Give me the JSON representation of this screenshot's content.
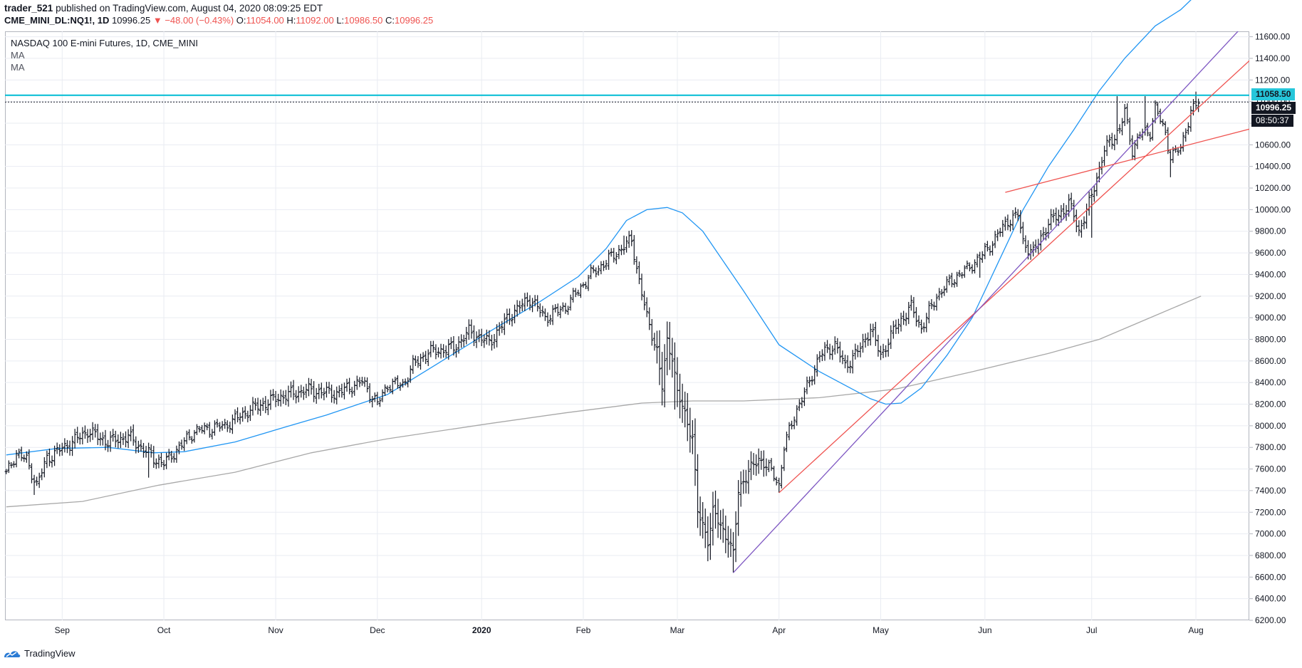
{
  "header": {
    "publisher": "trader_521",
    "published_text": " published on TradingView.com, August 04, 2020 08:09:25 EDT",
    "symbol": "CME_MINI_DL:NQ1!, 1D",
    "last": "10996.25",
    "change": "▼ −48.00 (−0.43%)",
    "o_label": "O:",
    "o_value": "11054.00",
    "h_label": "H:",
    "h_value": "11092.00",
    "l_label": "L:",
    "l_value": "10986.50",
    "c_label": "C:",
    "c_value": "10996.25"
  },
  "legend": {
    "title": "NASDAQ 100 E-mini Futures, 1D, CME_MINI",
    "ma1": "MA",
    "ma2": "MA"
  },
  "price_tags": {
    "resistance": "11058.50",
    "last_price": "10996.25",
    "countdown": "08:50:37"
  },
  "footer": {
    "brand": "TradingView"
  },
  "colors": {
    "bars": "#131722",
    "ma_fast": "#2196f3",
    "ma_slow": "#a8a8a8",
    "resistance": "#00bcd4",
    "trend_red": "#ef5350",
    "trend_purple": "#7e57c2",
    "grid": "#e9ecf2",
    "red_text": "#ef5350"
  },
  "chart_data": {
    "type": "ohlc",
    "instrument": "NASDAQ 100 E-mini Futures",
    "timeframe": "1D",
    "y_ticks": [
      6200,
      6400,
      6600,
      6800,
      7000,
      7200,
      7400,
      7600,
      7800,
      8000,
      8200,
      8400,
      8600,
      8800,
      9000,
      9200,
      9400,
      9600,
      9800,
      10000,
      10200,
      10400,
      10600,
      10800,
      11000,
      11200,
      11400,
      11600
    ],
    "y_tick_labels": [
      "6200.00",
      "6400.00",
      "6600.00",
      "6800.00",
      "7000.00",
      "7200.00",
      "7400.00",
      "7600.00",
      "7800.00",
      "8000.00",
      "8200.00",
      "8400.00",
      "8600.00",
      "8800.00",
      "9000.00",
      "9200.00",
      "9400.00",
      "9600.00",
      "9800.00",
      "10000.00",
      "10200.00",
      "10400.00",
      "10600.00",
      "10800.00",
      "11000.00",
      "11200.00",
      "11400.00",
      "11600.00"
    ],
    "ylim": [
      6200,
      11650
    ],
    "x_labels": [
      {
        "label": "Sep",
        "bar": 22
      },
      {
        "label": "Oct",
        "bar": 62
      },
      {
        "label": "Nov",
        "bar": 106
      },
      {
        "label": "Dec",
        "bar": 146
      },
      {
        "label": "2020",
        "bar": 187
      },
      {
        "label": "Feb",
        "bar": 227
      },
      {
        "label": "Mar",
        "bar": 264
      },
      {
        "label": "Apr",
        "bar": 304
      },
      {
        "label": "May",
        "bar": 344
      },
      {
        "label": "Jun",
        "bar": 385
      },
      {
        "label": "Jul",
        "bar": 427
      },
      {
        "label": "Aug",
        "bar": 468
      }
    ],
    "bold_x_label": "2020",
    "x_bar_range": [
      -0.5,
      489
    ],
    "anchors_close": [
      [
        0,
        7550
      ],
      [
        4,
        7750
      ],
      [
        8,
        7680
      ],
      [
        12,
        7450
      ],
      [
        16,
        7700
      ],
      [
        26,
        7850
      ],
      [
        32,
        7950
      ],
      [
        40,
        7850
      ],
      [
        48,
        7900
      ],
      [
        58,
        7700
      ],
      [
        62,
        7650
      ],
      [
        66,
        7750
      ],
      [
        74,
        7950
      ],
      [
        86,
        8000
      ],
      [
        96,
        8150
      ],
      [
        108,
        8270
      ],
      [
        118,
        8330
      ],
      [
        130,
        8300
      ],
      [
        140,
        8410
      ],
      [
        146,
        8200
      ],
      [
        150,
        8380
      ],
      [
        156,
        8380
      ],
      [
        160,
        8560
      ],
      [
        166,
        8680
      ],
      [
        176,
        8720
      ],
      [
        182,
        8870
      ],
      [
        190,
        8770
      ],
      [
        198,
        9020
      ],
      [
        206,
        9180
      ],
      [
        212,
        9000
      ],
      [
        220,
        9100
      ],
      [
        230,
        9400
      ],
      [
        240,
        9600
      ],
      [
        246,
        9720
      ],
      [
        248,
        9460
      ],
      [
        252,
        9000
      ],
      [
        256,
        8700
      ],
      [
        258,
        8350
      ],
      [
        260,
        8780
      ],
      [
        262,
        8650
      ],
      [
        264,
        8300
      ],
      [
        270,
        7900
      ],
      [
        272,
        7200
      ],
      [
        276,
        6950
      ],
      [
        278,
        7200
      ],
      [
        284,
        6950
      ],
      [
        286,
        6800
      ],
      [
        288,
        7400
      ],
      [
        290,
        7500
      ],
      [
        296,
        7700
      ],
      [
        302,
        7550
      ],
      [
        304,
        7450
      ],
      [
        306,
        7800
      ],
      [
        310,
        8100
      ],
      [
        314,
        8300
      ],
      [
        320,
        8650
      ],
      [
        326,
        8750
      ],
      [
        330,
        8550
      ],
      [
        336,
        8720
      ],
      [
        340,
        8900
      ],
      [
        344,
        8650
      ],
      [
        350,
        8920
      ],
      [
        356,
        9100
      ],
      [
        360,
        8900
      ],
      [
        366,
        9200
      ],
      [
        372,
        9350
      ],
      [
        378,
        9450
      ],
      [
        384,
        9580
      ],
      [
        388,
        9700
      ],
      [
        394,
        9900
      ],
      [
        398,
        9950
      ],
      [
        400,
        9700
      ],
      [
        404,
        9600
      ],
      [
        410,
        9880
      ],
      [
        414,
        9950
      ],
      [
        418,
        10050
      ],
      [
        420,
        9950
      ],
      [
        422,
        9800
      ],
      [
        426,
        10050
      ],
      [
        432,
        10550
      ],
      [
        438,
        10750
      ],
      [
        440,
        10900
      ],
      [
        443,
        10550
      ],
      [
        446,
        10700
      ],
      [
        450,
        10720
      ],
      [
        452,
        10950
      ],
      [
        456,
        10700
      ],
      [
        458,
        10500
      ],
      [
        462,
        10560
      ],
      [
        464,
        10750
      ],
      [
        466,
        10900
      ],
      [
        469,
        10996
      ]
    ],
    "overrides_high": [
      [
        243,
        9760
      ],
      [
        437,
        11050
      ],
      [
        448,
        11050
      ],
      [
        468,
        11092
      ]
    ],
    "overrides_low": [
      [
        11,
        7360
      ],
      [
        56,
        7520
      ],
      [
        144,
        8170
      ],
      [
        263,
        8150
      ],
      [
        286,
        6640
      ],
      [
        304,
        7380
      ],
      [
        383,
        9370
      ],
      [
        427,
        9740
      ],
      [
        458,
        10300
      ]
    ],
    "ma_fast": {
      "name": "MA",
      "points": [
        [
          0,
          7730
        ],
        [
          20,
          7790
        ],
        [
          40,
          7800
        ],
        [
          58,
          7750
        ],
        [
          70,
          7760
        ],
        [
          90,
          7850
        ],
        [
          110,
          7990
        ],
        [
          126,
          8100
        ],
        [
          150,
          8290
        ],
        [
          170,
          8580
        ],
        [
          190,
          8870
        ],
        [
          210,
          9150
        ],
        [
          225,
          9380
        ],
        [
          236,
          9640
        ],
        [
          244,
          9900
        ],
        [
          252,
          10000
        ],
        [
          260,
          10020
        ],
        [
          266,
          9970
        ],
        [
          274,
          9800
        ],
        [
          290,
          9250
        ],
        [
          304,
          8750
        ],
        [
          320,
          8500
        ],
        [
          332,
          8350
        ],
        [
          340,
          8250
        ],
        [
          346,
          8200
        ],
        [
          352,
          8210
        ],
        [
          360,
          8350
        ],
        [
          370,
          8650
        ],
        [
          380,
          9000
        ],
        [
          390,
          9500
        ],
        [
          400,
          10000
        ],
        [
          410,
          10400
        ],
        [
          420,
          10740
        ],
        [
          430,
          11100
        ],
        [
          440,
          11400
        ],
        [
          452,
          11700
        ],
        [
          462,
          11850
        ],
        [
          470,
          12030
        ]
      ]
    },
    "ma_slow": {
      "name": "MA",
      "points": [
        [
          0,
          7250
        ],
        [
          30,
          7300
        ],
        [
          60,
          7450
        ],
        [
          90,
          7570
        ],
        [
          120,
          7750
        ],
        [
          150,
          7880
        ],
        [
          190,
          8020
        ],
        [
          220,
          8120
        ],
        [
          250,
          8210
        ],
        [
          270,
          8230
        ],
        [
          290,
          8230
        ],
        [
          320,
          8260
        ],
        [
          350,
          8340
        ],
        [
          380,
          8500
        ],
        [
          410,
          8670
        ],
        [
          430,
          8800
        ],
        [
          450,
          9000
        ],
        [
          470,
          9200
        ]
      ]
    },
    "resistance_level": 11058.5,
    "last_price": 10996.25,
    "trendlines": [
      {
        "color": "red",
        "from": [
          304,
          7380
        ],
        "to": [
          497,
          11550
        ]
      },
      {
        "color": "purple",
        "from": [
          286,
          6640
        ],
        "to": [
          498,
          11990
        ]
      },
      {
        "color": "red",
        "from": [
          393,
          10160
        ],
        "to": [
          498,
          10800
        ]
      }
    ]
  }
}
